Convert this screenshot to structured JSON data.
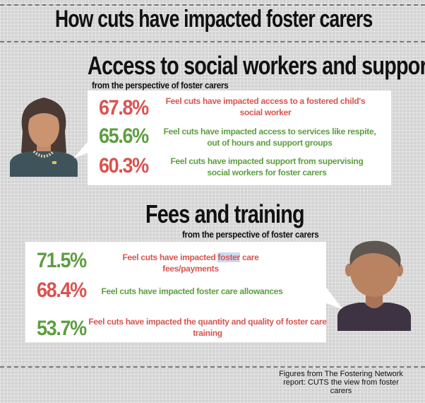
{
  "title": "How cuts have impacted foster carers",
  "section1": {
    "heading": "Access to social workers and support",
    "subheading": "from the perspective of foster carers",
    "stats": [
      {
        "value": "67.8%",
        "text": "Feel cuts have impacted access to a fostered child's social worker",
        "color": "#d9534f"
      },
      {
        "value": "65.6%",
        "text": "Feel cuts have impacted access to services like respite, out of hours and support groups",
        "color": "#5c9e3f"
      },
      {
        "value": "60.3%",
        "text": "Feel cuts have impacted  support from supervising social workers for foster carers",
        "color": "#d9534f"
      }
    ]
  },
  "section2": {
    "heading": "Fees and training",
    "subheading": "from the perspective of foster carers",
    "stats": [
      {
        "value": "71.5%",
        "text_before": "Feel cuts have impacted ",
        "text_highlight": "foster",
        "text_after": " care fees/payments",
        "color": "#5c9e3f"
      },
      {
        "value": "68.4%",
        "text": "Feel cuts have impacted foster care allowances",
        "color": "#d9534f"
      },
      {
        "value": "53.7%",
        "text": "Feel cuts have impacted the quantity and quality of foster care training",
        "color": "#5c9e3f"
      }
    ]
  },
  "source": "Figures from The Fostering Network report: CUTS the view from foster carers",
  "icons": [
    "woman-avatar-icon",
    "man-avatar-icon"
  ]
}
